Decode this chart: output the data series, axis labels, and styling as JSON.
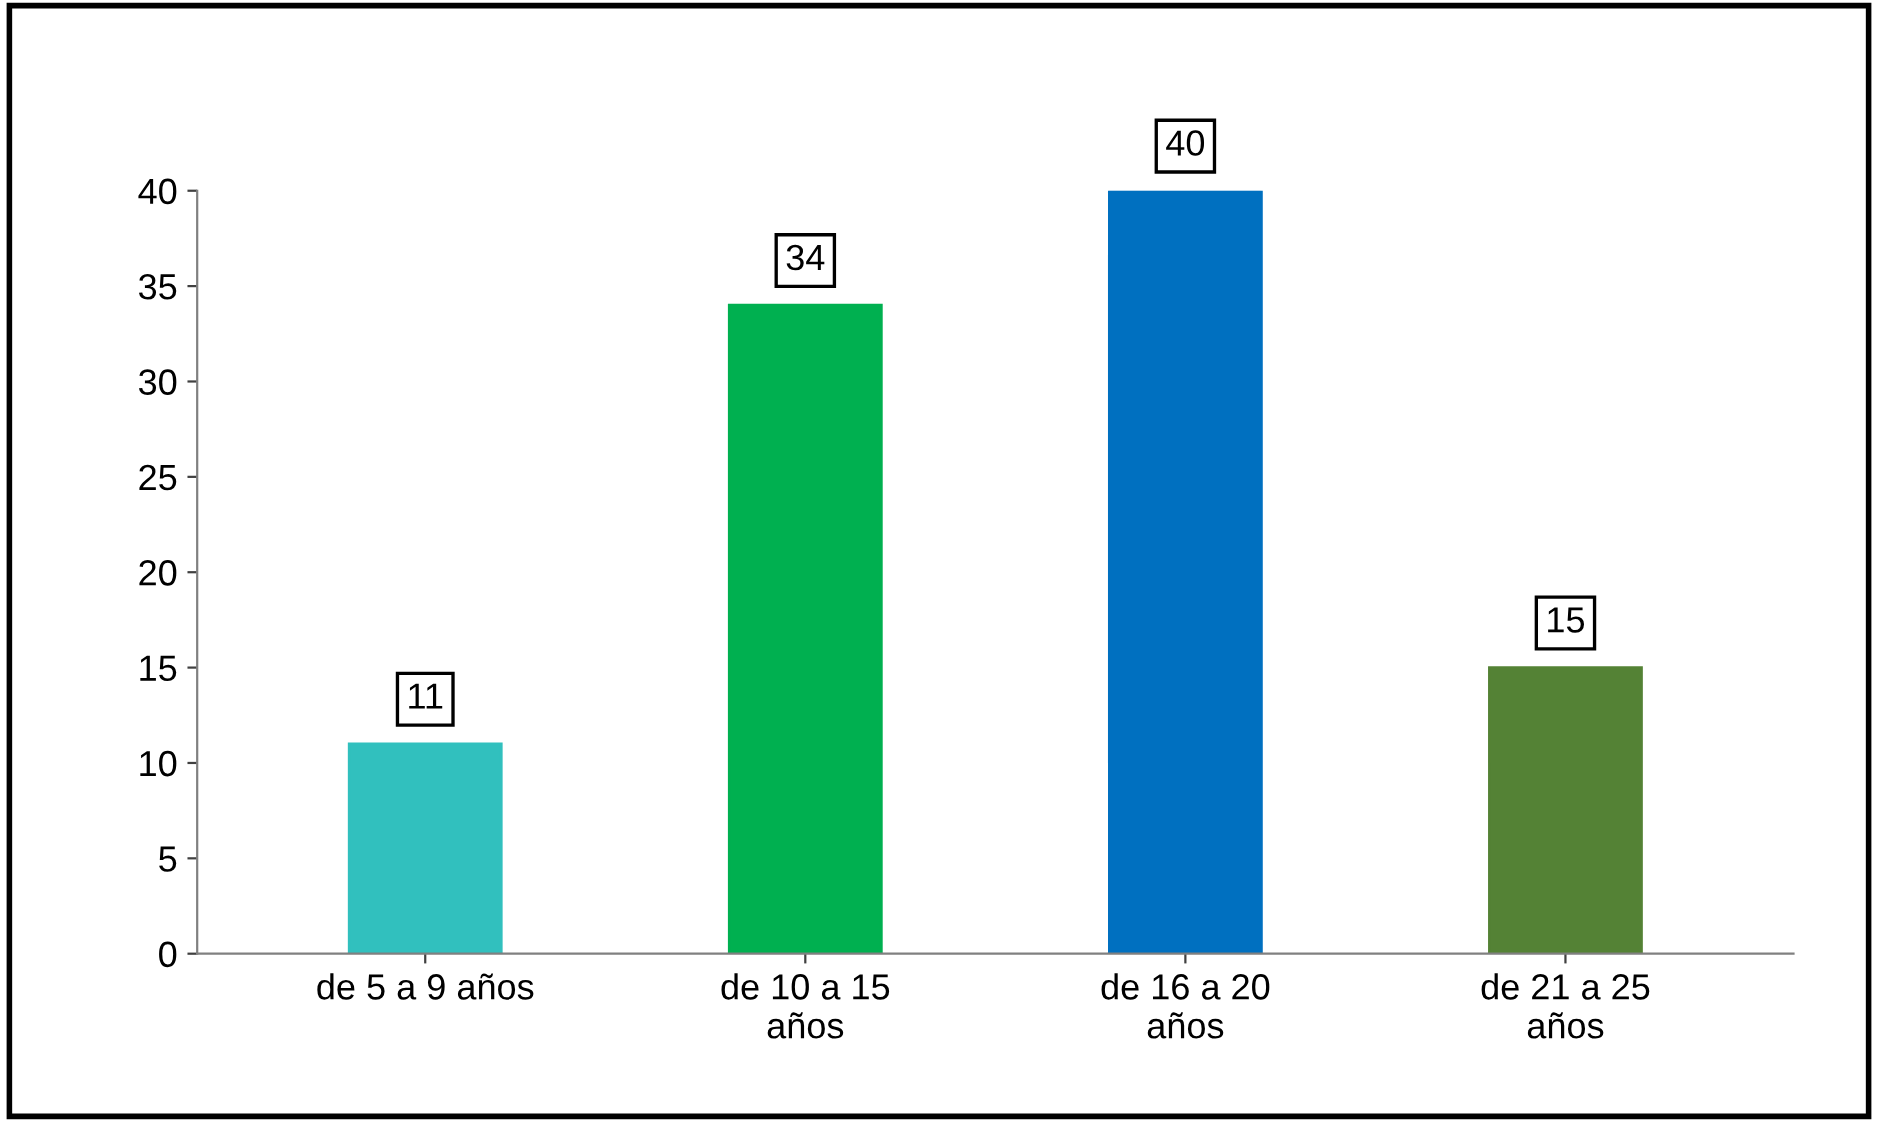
{
  "chart_data": {
    "type": "bar",
    "categories": [
      "de 5 a 9 años",
      "de 10 a 15\naños",
      "de 16 a 20\naños",
      "de 21 a 25\naños"
    ],
    "values": [
      11,
      34,
      40,
      15
    ],
    "colors": [
      "#31c0be",
      "#00b050",
      "#0070c0",
      "#548235"
    ],
    "ylim": [
      0,
      40
    ],
    "yticks": [
      0,
      5,
      10,
      15,
      20,
      25,
      30,
      35,
      40
    ],
    "data_labels": true,
    "grid": false,
    "legend": false
  }
}
